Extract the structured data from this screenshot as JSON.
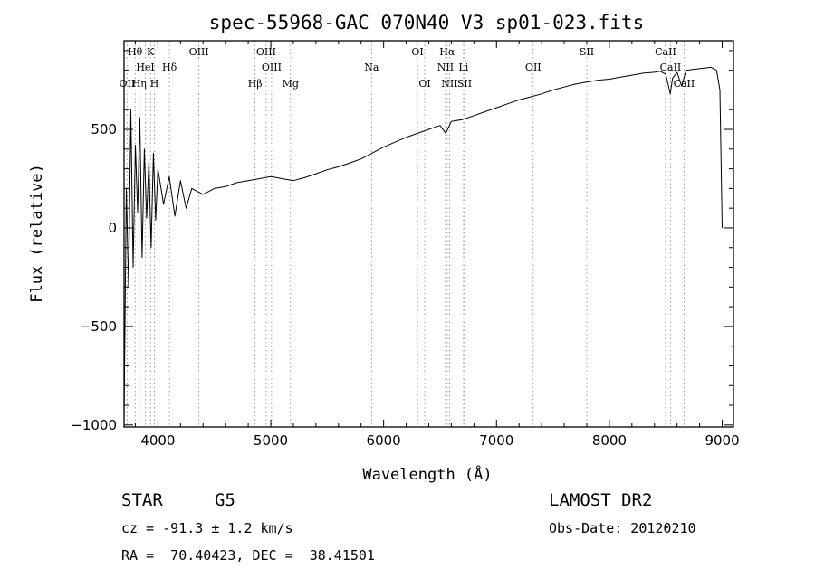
{
  "chart_data": {
    "type": "line",
    "title": "spec-55968-GAC_070N40_V3_sp01-023.fits",
    "xlabel": "Wavelength (Å)",
    "ylabel": "Flux (relative)",
    "xlim": [
      3700,
      9100
    ],
    "ylim": [
      -1010,
      950
    ],
    "xticks": [
      4000,
      5000,
      6000,
      7000,
      8000,
      9000
    ],
    "yticks": [
      -1000,
      -500,
      0,
      500
    ],
    "grid": false,
    "series": [
      {
        "values": [
          [
            3700,
            -980
          ],
          [
            3720,
            200
          ],
          [
            3740,
            -300
          ],
          [
            3760,
            600
          ],
          [
            3780,
            -200
          ],
          [
            3800,
            420
          ],
          [
            3820,
            80
          ],
          [
            3840,
            560
          ],
          [
            3860,
            -150
          ],
          [
            3880,
            400
          ],
          [
            3900,
            50
          ],
          [
            3920,
            340
          ],
          [
            3940,
            -100
          ],
          [
            3960,
            380
          ],
          [
            3980,
            40
          ],
          [
            4000,
            300
          ],
          [
            4050,
            120
          ],
          [
            4100,
            260
          ],
          [
            4150,
            60
          ],
          [
            4200,
            240
          ],
          [
            4250,
            100
          ],
          [
            4300,
            200
          ],
          [
            4400,
            170
          ],
          [
            4500,
            200
          ],
          [
            4600,
            210
          ],
          [
            4700,
            230
          ],
          [
            4800,
            240
          ],
          [
            4900,
            250
          ],
          [
            5000,
            260
          ],
          [
            5100,
            250
          ],
          [
            5200,
            240
          ],
          [
            5300,
            255
          ],
          [
            5400,
            275
          ],
          [
            5500,
            295
          ],
          [
            5600,
            310
          ],
          [
            5700,
            330
          ],
          [
            5800,
            350
          ],
          [
            5900,
            380
          ],
          [
            6000,
            410
          ],
          [
            6100,
            435
          ],
          [
            6200,
            460
          ],
          [
            6300,
            480
          ],
          [
            6400,
            500
          ],
          [
            6500,
            520
          ],
          [
            6550,
            480
          ],
          [
            6600,
            540
          ],
          [
            6700,
            550
          ],
          [
            6800,
            570
          ],
          [
            6900,
            590
          ],
          [
            7000,
            610
          ],
          [
            7100,
            630
          ],
          [
            7200,
            650
          ],
          [
            7300,
            665
          ],
          [
            7400,
            680
          ],
          [
            7500,
            700
          ],
          [
            7600,
            715
          ],
          [
            7700,
            730
          ],
          [
            7800,
            740
          ],
          [
            7900,
            750
          ],
          [
            8000,
            755
          ],
          [
            8100,
            765
          ],
          [
            8200,
            775
          ],
          [
            8300,
            785
          ],
          [
            8400,
            790
          ],
          [
            8450,
            795
          ],
          [
            8500,
            780
          ],
          [
            8540,
            680
          ],
          [
            8560,
            760
          ],
          [
            8600,
            790
          ],
          [
            8640,
            720
          ],
          [
            8680,
            800
          ],
          [
            8750,
            805
          ],
          [
            8800,
            808
          ],
          [
            8850,
            812
          ],
          [
            8900,
            815
          ],
          [
            8950,
            800
          ],
          [
            8980,
            700
          ],
          [
            9000,
            0
          ]
        ]
      }
    ],
    "line_markers": [
      {
        "label": "Hθ",
        "wavelength": 3798,
        "row": 0
      },
      {
        "label": "K",
        "wavelength": 3934,
        "row": 0
      },
      {
        "label": "HeI",
        "wavelength": 3889,
        "row": 1
      },
      {
        "label": "Hδ",
        "wavelength": 4102,
        "row": 1
      },
      {
        "label": "OII",
        "wavelength": 3727,
        "row": 2
      },
      {
        "label": "Hη",
        "wavelength": 3835,
        "row": 2
      },
      {
        "label": "H",
        "wavelength": 3969,
        "row": 2
      },
      {
        "label": "OIII",
        "wavelength": 4363,
        "row": 0
      },
      {
        "label": "OIII",
        "wavelength": 4959,
        "row": 0
      },
      {
        "label": "OIII",
        "wavelength": 5007,
        "row": 1
      },
      {
        "label": "Hβ",
        "wavelength": 4861,
        "row": 2
      },
      {
        "label": "Mg",
        "wavelength": 5175,
        "row": 2
      },
      {
        "label": "Na",
        "wavelength": 5893,
        "row": 1
      },
      {
        "label": "OI",
        "wavelength": 6300,
        "row": 0
      },
      {
        "label": "OI",
        "wavelength": 6364,
        "row": 2
      },
      {
        "label": "Hα",
        "wavelength": 6563,
        "row": 0
      },
      {
        "label": "NII",
        "wavelength": 6548,
        "row": 1
      },
      {
        "label": "Li",
        "wavelength": 6708,
        "row": 1
      },
      {
        "label": "NII",
        "wavelength": 6584,
        "row": 2
      },
      {
        "label": "SII",
        "wavelength": 6717,
        "row": 2
      },
      {
        "label": "OII",
        "wavelength": 7325,
        "row": 1
      },
      {
        "label": "SII",
        "wavelength": 7800,
        "row": 0
      },
      {
        "label": "CaII",
        "wavelength": 8498,
        "row": 0
      },
      {
        "label": "CaII",
        "wavelength": 8542,
        "row": 1
      },
      {
        "label": "CaII",
        "wavelength": 8662,
        "row": 2
      }
    ]
  },
  "info": {
    "object_class": "STAR",
    "subclass": "G5",
    "survey": "LAMOST DR2",
    "redshift": "cz = -91.3 ± 1.2 km/s",
    "obs_date": "Obs-Date: 20120210",
    "coords": "RA =  70.40423, DEC =  38.41501"
  }
}
